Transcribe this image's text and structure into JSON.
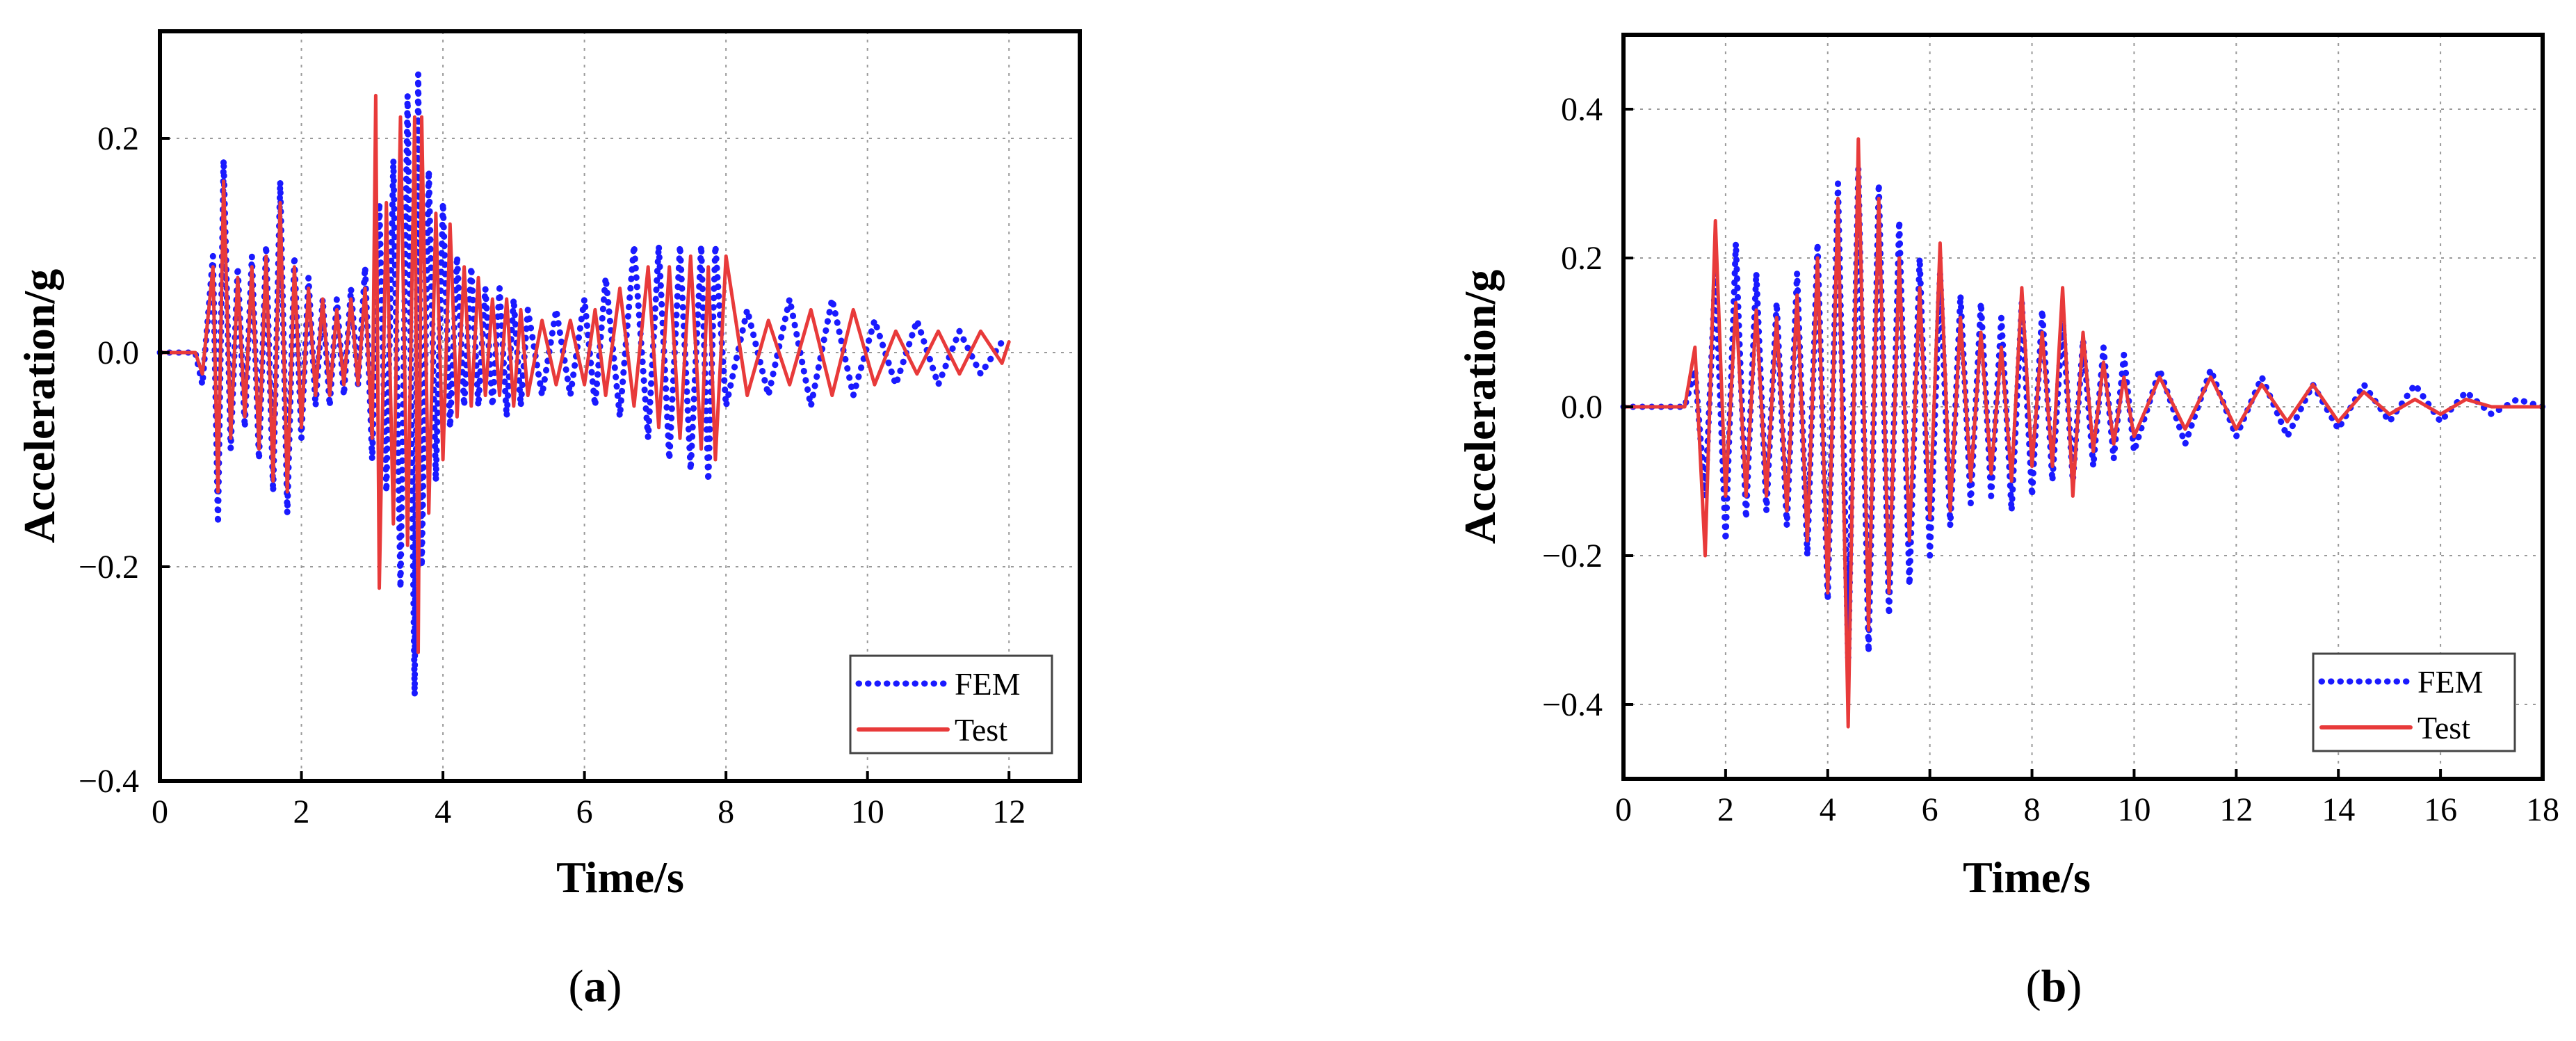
{
  "colors": {
    "fem": "#1a1aff",
    "test": "#e83a3a",
    "grid": "#9a9a9a",
    "axis": "#000000"
  },
  "chart_data": [
    {
      "id": "a",
      "type": "line",
      "caption_open": "(",
      "caption_letter": "a",
      "caption_close": ")",
      "xlabel": "Time/s",
      "ylabel": "Acceleration/g",
      "xlim": [
        0,
        13
      ],
      "ylim": [
        -0.4,
        0.3
      ],
      "xticks": [
        0,
        2,
        4,
        6,
        8,
        10,
        12
      ],
      "xtick_labels": [
        "0",
        "2",
        "4",
        "6",
        "8",
        "10",
        "12"
      ],
      "yticks": [
        -0.4,
        -0.2,
        0.0,
        0.2
      ],
      "ytick_labels": [
        "-0.4",
        "-0.2",
        "0.0",
        "0.2"
      ],
      "grid": true,
      "legend": {
        "position": "bottom-right",
        "entries": [
          "FEM",
          "Test"
        ]
      },
      "series": [
        {
          "name": "FEM",
          "style": "dotted",
          "x": [
            0,
            0.5,
            0.6,
            0.75,
            0.82,
            0.9,
            1.0,
            1.1,
            1.2,
            1.3,
            1.4,
            1.5,
            1.6,
            1.7,
            1.8,
            1.9,
            2.0,
            2.1,
            2.2,
            2.3,
            2.4,
            2.5,
            2.6,
            2.7,
            2.8,
            2.9,
            3.0,
            3.1,
            3.2,
            3.3,
            3.4,
            3.5,
            3.6,
            3.65,
            3.7,
            3.8,
            3.9,
            4.0,
            4.1,
            4.2,
            4.3,
            4.4,
            4.5,
            4.6,
            4.7,
            4.8,
            4.9,
            5.0,
            5.1,
            5.2,
            5.4,
            5.6,
            5.8,
            6.0,
            6.15,
            6.3,
            6.5,
            6.7,
            6.9,
            7.05,
            7.2,
            7.35,
            7.5,
            7.65,
            7.75,
            7.85,
            8.0,
            8.3,
            8.6,
            8.9,
            9.2,
            9.5,
            9.8,
            10.1,
            10.4,
            10.7,
            11.0,
            11.3,
            11.6,
            11.9,
            12.0
          ],
          "y": [
            0,
            0,
            -0.03,
            0.09,
            -0.16,
            0.18,
            -0.09,
            0.08,
            -0.07,
            0.09,
            -0.1,
            0.1,
            -0.13,
            0.16,
            -0.15,
            0.09,
            -0.08,
            0.07,
            -0.05,
            0.05,
            -0.05,
            0.05,
            -0.04,
            0.06,
            -0.03,
            0.08,
            -0.1,
            0.14,
            -0.13,
            0.18,
            -0.22,
            0.24,
            -0.32,
            0.26,
            -0.2,
            0.17,
            -0.12,
            0.14,
            -0.07,
            0.09,
            -0.05,
            0.08,
            -0.05,
            0.06,
            -0.05,
            0.06,
            -0.06,
            0.05,
            -0.05,
            0.04,
            -0.04,
            0.04,
            -0.04,
            0.05,
            -0.05,
            0.07,
            -0.06,
            0.1,
            -0.08,
            0.1,
            -0.1,
            0.1,
            -0.11,
            0.1,
            -0.12,
            0.1,
            -0.05,
            0.04,
            -0.04,
            0.05,
            -0.05,
            0.05,
            -0.04,
            0.03,
            -0.03,
            0.03,
            -0.03,
            0.02,
            -0.02,
            0.01,
            0.01
          ]
        },
        {
          "name": "Test",
          "style": "solid",
          "x": [
            0,
            0.5,
            0.6,
            0.75,
            0.82,
            0.9,
            1.0,
            1.1,
            1.2,
            1.3,
            1.4,
            1.5,
            1.6,
            1.7,
            1.8,
            1.9,
            2.0,
            2.1,
            2.2,
            2.3,
            2.4,
            2.5,
            2.6,
            2.7,
            2.8,
            2.9,
            3.0,
            3.05,
            3.1,
            3.2,
            3.3,
            3.4,
            3.5,
            3.6,
            3.65,
            3.7,
            3.8,
            3.9,
            4.0,
            4.1,
            4.2,
            4.3,
            4.4,
            4.5,
            4.6,
            4.7,
            4.8,
            4.9,
            5.0,
            5.1,
            5.2,
            5.4,
            5.6,
            5.8,
            6.0,
            6.15,
            6.3,
            6.5,
            6.7,
            6.9,
            7.05,
            7.2,
            7.35,
            7.5,
            7.65,
            7.75,
            7.85,
            8.0,
            8.3,
            8.6,
            8.9,
            9.2,
            9.5,
            9.8,
            10.1,
            10.4,
            10.7,
            11.0,
            11.3,
            11.6,
            11.9,
            12.0
          ],
          "y": [
            0,
            0,
            -0.02,
            0.08,
            -0.13,
            0.16,
            -0.08,
            0.07,
            -0.06,
            0.08,
            -0.09,
            0.09,
            -0.12,
            0.14,
            -0.13,
            0.08,
            -0.07,
            0.06,
            -0.04,
            0.05,
            -0.04,
            0.04,
            -0.03,
            0.05,
            -0.03,
            0.06,
            -0.08,
            0.24,
            -0.22,
            0.14,
            -0.16,
            0.22,
            -0.18,
            0.22,
            -0.28,
            0.22,
            -0.15,
            0.13,
            -0.1,
            0.12,
            -0.06,
            0.08,
            -0.05,
            0.07,
            -0.04,
            0.05,
            -0.04,
            0.05,
            -0.05,
            0.04,
            -0.04,
            0.03,
            -0.03,
            0.03,
            -0.03,
            0.04,
            -0.04,
            0.06,
            -0.05,
            0.08,
            -0.07,
            0.08,
            -0.08,
            0.09,
            -0.09,
            0.08,
            -0.1,
            0.09,
            -0.04,
            0.03,
            -0.03,
            0.04,
            -0.04,
            0.04,
            -0.03,
            0.02,
            -0.02,
            0.02,
            -0.02,
            0.02,
            -0.01,
            0.01
          ]
        }
      ]
    },
    {
      "id": "b",
      "type": "line",
      "caption_open": "(",
      "caption_letter": "b",
      "caption_close": ")",
      "xlabel": "Time/s",
      "ylabel": "Acceleration/g",
      "xlim": [
        0,
        18
      ],
      "ylim": [
        -0.5,
        0.5
      ],
      "xticks": [
        0,
        2,
        4,
        6,
        8,
        10,
        12,
        14,
        16,
        18
      ],
      "xtick_labels": [
        "0",
        "2",
        "4",
        "6",
        "8",
        "10",
        "12",
        "14",
        "16",
        "18"
      ],
      "yticks": [
        -0.4,
        -0.2,
        0.0,
        0.2,
        0.4
      ],
      "ytick_labels": [
        "-0.4",
        "-0.2",
        "0.0",
        "0.2",
        "0.4"
      ],
      "grid": true,
      "legend": {
        "position": "bottom-right",
        "entries": [
          "FEM",
          "Test"
        ]
      },
      "series": [
        {
          "name": "FEM",
          "style": "dotted",
          "x": [
            0,
            1.2,
            1.4,
            1.6,
            1.8,
            2.0,
            2.2,
            2.4,
            2.6,
            2.8,
            3.0,
            3.2,
            3.4,
            3.6,
            3.8,
            4.0,
            4.2,
            4.4,
            4.6,
            4.8,
            5.0,
            5.2,
            5.4,
            5.6,
            5.8,
            6.0,
            6.2,
            6.4,
            6.6,
            6.8,
            7.0,
            7.2,
            7.4,
            7.6,
            7.8,
            8.0,
            8.2,
            8.4,
            8.6,
            8.8,
            9.0,
            9.2,
            9.4,
            9.6,
            9.8,
            10.0,
            10.5,
            11.0,
            11.5,
            12.0,
            12.5,
            13.0,
            13.5,
            14.0,
            14.5,
            15.0,
            15.5,
            16.0,
            16.5,
            17.0,
            17.5,
            18.0
          ],
          "y": [
            0,
            0,
            0.05,
            -0.12,
            0.18,
            -0.18,
            0.22,
            -0.15,
            0.18,
            -0.14,
            0.14,
            -0.16,
            0.18,
            -0.2,
            0.22,
            -0.26,
            0.3,
            -0.34,
            0.32,
            -0.33,
            0.3,
            -0.28,
            0.25,
            -0.24,
            0.2,
            -0.2,
            0.18,
            -0.16,
            0.15,
            -0.13,
            0.14,
            -0.12,
            0.12,
            -0.14,
            0.14,
            -0.12,
            0.13,
            -0.1,
            0.12,
            -0.1,
            0.09,
            -0.08,
            0.08,
            -0.07,
            0.07,
            -0.06,
            0.05,
            -0.05,
            0.05,
            -0.04,
            0.04,
            -0.04,
            0.03,
            -0.03,
            0.03,
            -0.02,
            0.03,
            -0.02,
            0.02,
            -0.01,
            0.01,
            0
          ]
        },
        {
          "name": "Test",
          "style": "solid",
          "x": [
            0,
            1.2,
            1.4,
            1.6,
            1.8,
            2.0,
            2.2,
            2.4,
            2.6,
            2.8,
            3.0,
            3.2,
            3.4,
            3.6,
            3.8,
            4.0,
            4.2,
            4.4,
            4.6,
            4.8,
            5.0,
            5.2,
            5.4,
            5.6,
            5.8,
            6.0,
            6.2,
            6.4,
            6.6,
            6.8,
            7.0,
            7.2,
            7.4,
            7.6,
            7.8,
            8.0,
            8.2,
            8.4,
            8.6,
            8.8,
            9.0,
            9.2,
            9.4,
            9.6,
            9.8,
            10.0,
            10.5,
            11.0,
            11.5,
            12.0,
            12.5,
            13.0,
            13.5,
            14.0,
            14.5,
            15.0,
            15.5,
            16.0,
            16.5,
            17.0,
            17.5,
            18.0
          ],
          "y": [
            0,
            0,
            0.08,
            -0.2,
            0.25,
            -0.12,
            0.14,
            -0.12,
            0.13,
            -0.12,
            0.12,
            -0.14,
            0.15,
            -0.18,
            0.2,
            -0.25,
            0.28,
            -0.43,
            0.36,
            -0.3,
            0.28,
            -0.25,
            0.2,
            -0.18,
            0.16,
            -0.15,
            0.22,
            -0.14,
            0.12,
            -0.1,
            0.1,
            -0.09,
            0.08,
            -0.1,
            0.16,
            -0.08,
            0.1,
            -0.08,
            0.16,
            -0.12,
            0.1,
            -0.06,
            0.06,
            -0.05,
            0.04,
            -0.04,
            0.04,
            -0.03,
            0.04,
            -0.03,
            0.03,
            -0.02,
            0.03,
            -0.02,
            0.02,
            -0.01,
            0.01,
            -0.01,
            0.01,
            0,
            0,
            0
          ]
        }
      ]
    }
  ]
}
